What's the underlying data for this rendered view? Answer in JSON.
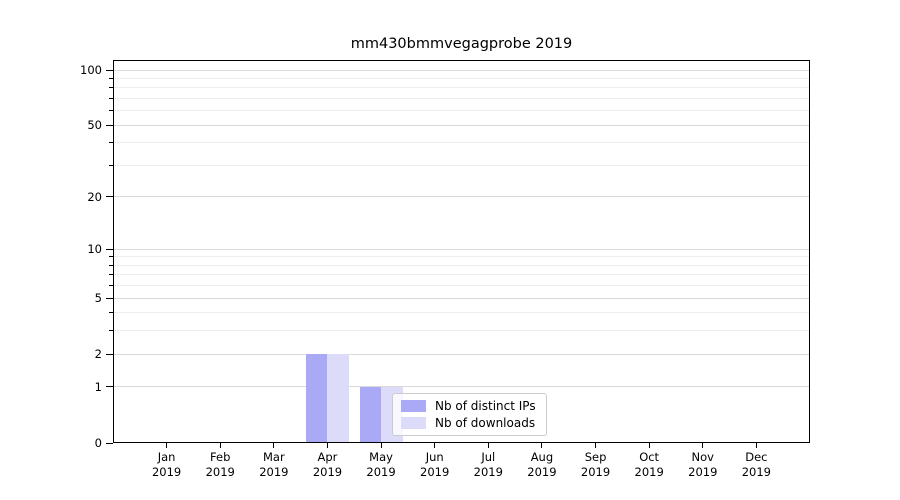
{
  "chart_data": {
    "type": "bar",
    "title": "mm430bmmvegagprobe 2019",
    "x": {
      "months": [
        "Jan",
        "Feb",
        "Mar",
        "Apr",
        "May",
        "Jun",
        "Jul",
        "Aug",
        "Sep",
        "Oct",
        "Nov",
        "Dec"
      ],
      "year": "2019"
    },
    "series": [
      {
        "name": "Nb of distinct IPs",
        "color": "#a9a9f5",
        "values": [
          0,
          0,
          0,
          2,
          1,
          0,
          0,
          0,
          0,
          0,
          0,
          0
        ]
      },
      {
        "name": "Nb of downloads",
        "color": "#dcdcfa",
        "values": [
          0,
          0,
          0,
          2,
          1,
          0,
          0,
          0,
          0,
          0,
          0,
          0
        ]
      }
    ],
    "y_axis": {
      "scale": "log10(1+x)",
      "tick_values": [
        0,
        1,
        2,
        5,
        10,
        20,
        50,
        100
      ],
      "tick_labels": [
        "0",
        "1",
        "2",
        "5",
        "10",
        "20",
        "50",
        "100"
      ],
      "minor_tick_values": [
        3,
        4,
        6,
        7,
        8,
        9,
        30,
        40,
        60,
        70,
        80,
        90
      ],
      "top_tick_value": 100
    },
    "legend": {
      "entries": [
        "Nb of distinct IPs",
        "Nb of downloads"
      ],
      "position": "inside lower center"
    },
    "grid": {
      "major": true,
      "minor": true
    },
    "colors": {
      "distinct_ips_bar": "#a9a9f5",
      "downloads_bar": "#dcdcfa",
      "grid_major": "#d9d9d9",
      "grid_minor": "#ededed",
      "axis": "#000000",
      "legend_border": "#cccccc",
      "background": "#ffffff"
    }
  }
}
